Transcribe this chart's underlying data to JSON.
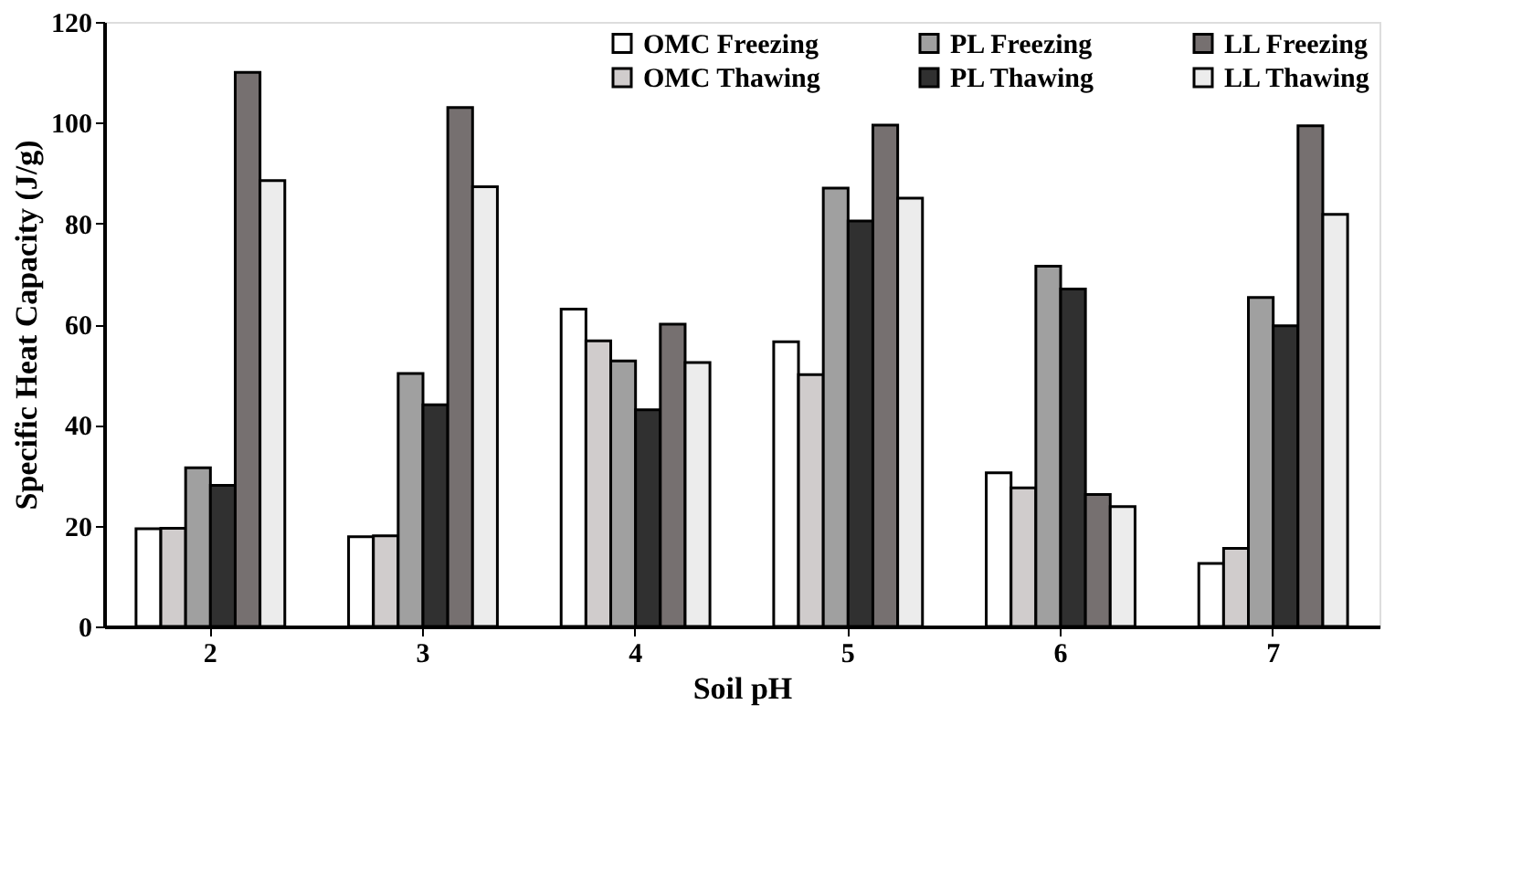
{
  "chart_data": {
    "type": "bar",
    "xlabel": "Soil pH",
    "ylabel": "Specific Heat Capacity (J/g)",
    "categories": [
      "2",
      "3",
      "4",
      "5",
      "6",
      "7"
    ],
    "series": [
      {
        "name": "OMC Freezing",
        "color": "#ffffff",
        "values": [
          19.4,
          17.8,
          63,
          56.5,
          30.5,
          12.5
        ]
      },
      {
        "name": "OMC Thawing",
        "color": "#d0cccc",
        "values": [
          19.5,
          18,
          56.7,
          50,
          27.5,
          15.5
        ]
      },
      {
        "name": "PL Freezing",
        "color": "#a0a0a0",
        "values": [
          31.5,
          50.2,
          52.7,
          87,
          71.5,
          65.3
        ]
      },
      {
        "name": "PL Thawing",
        "color": "#303030",
        "values": [
          28,
          44,
          43,
          80.5,
          67,
          59.7
        ]
      },
      {
        "name": "LL Freezing",
        "color": "#767070",
        "values": [
          110,
          103,
          60,
          99.5,
          26.2,
          99.4
        ]
      },
      {
        "name": "LL Thawing",
        "color": "#ececec",
        "values": [
          88.5,
          87.3,
          52.4,
          85,
          23.8,
          81.8
        ]
      }
    ],
    "ylim": [
      0,
      120
    ],
    "yticks": [
      0,
      20,
      40,
      60,
      80,
      100,
      120
    ],
    "grid": false,
    "legend": "top right"
  }
}
